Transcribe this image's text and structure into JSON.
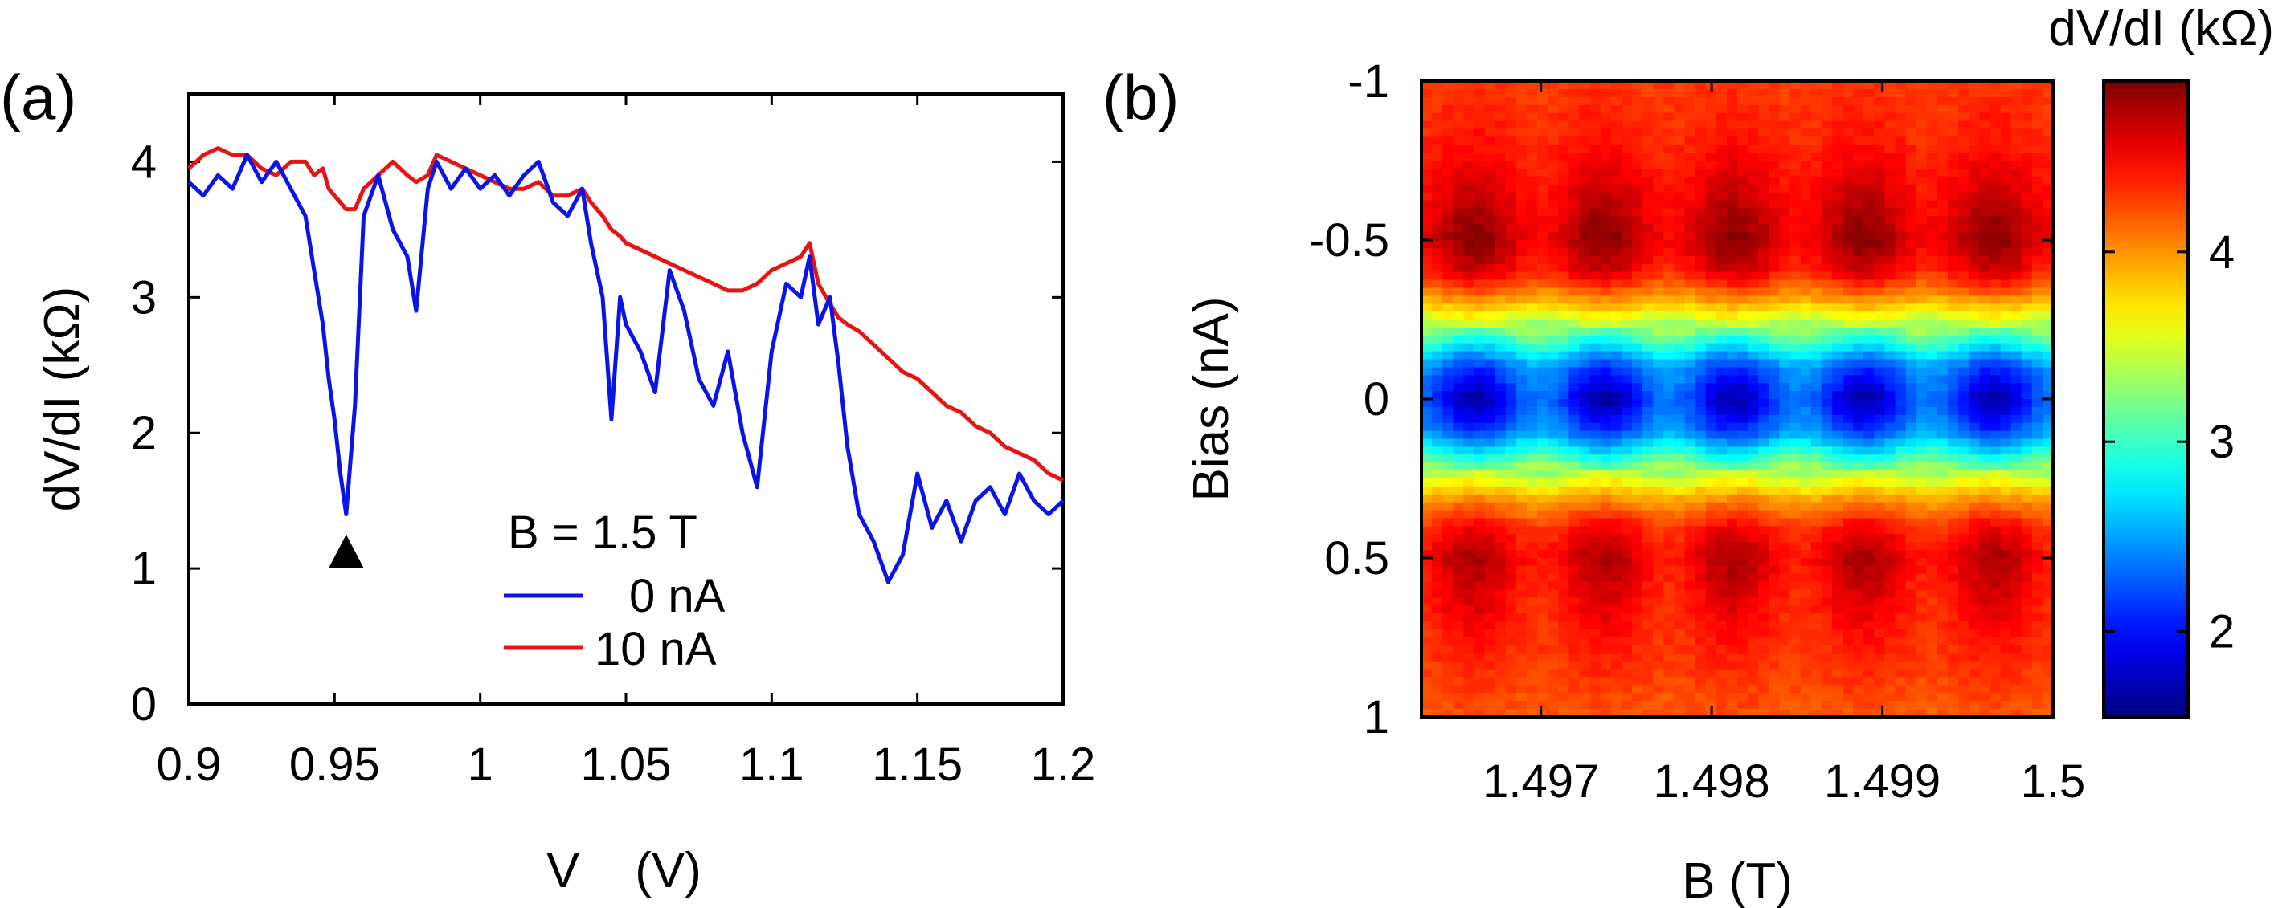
{
  "chart_data": [
    {
      "panel_label": "(a)",
      "type": "line",
      "xlabel": "V    (V)",
      "ylabel": "dV/dI (kΩ)",
      "xlim": [
        0.9,
        1.2
      ],
      "ylim": [
        0,
        4.5
      ],
      "xticks": [
        "0.9",
        "0.95",
        "1",
        "1.05",
        "1.1",
        "1.15",
        "1.2"
      ],
      "xtick_values": [
        0.9,
        0.95,
        1.0,
        1.05,
        1.1,
        1.15,
        1.2
      ],
      "yticks": [
        "0",
        "1",
        "2",
        "3",
        "4"
      ],
      "ytick_values": [
        0,
        1,
        2,
        3,
        4
      ],
      "legend_title": "B = 1.5 T",
      "legend_position": "bottom-center",
      "marker": {
        "symbol": "triangle-up",
        "x": 0.954,
        "y": 1.12
      },
      "x": [
        0.9,
        0.905,
        0.91,
        0.915,
        0.92,
        0.925,
        0.93,
        0.935,
        0.94,
        0.943,
        0.946,
        0.948,
        0.95,
        0.952,
        0.954,
        0.957,
        0.96,
        0.965,
        0.97,
        0.975,
        0.978,
        0.982,
        0.985,
        0.99,
        0.995,
        1.0,
        1.005,
        1.01,
        1.015,
        1.02,
        1.025,
        1.03,
        1.035,
        1.038,
        1.042,
        1.045,
        1.048,
        1.05,
        1.055,
        1.06,
        1.065,
        1.07,
        1.075,
        1.08,
        1.085,
        1.09,
        1.095,
        1.1,
        1.105,
        1.11,
        1.113,
        1.116,
        1.12,
        1.123,
        1.126,
        1.13,
        1.135,
        1.14,
        1.145,
        1.15,
        1.155,
        1.16,
        1.165,
        1.17,
        1.175,
        1.18,
        1.185,
        1.19,
        1.195,
        1.2
      ],
      "series": [
        {
          "name": "0 nA",
          "color": "#0a14e6",
          "values": [
            3.85,
            3.75,
            3.9,
            3.8,
            4.05,
            3.85,
            4.0,
            3.8,
            3.6,
            3.2,
            2.8,
            2.4,
            2.1,
            1.7,
            1.4,
            2.2,
            3.6,
            3.9,
            3.5,
            3.3,
            2.9,
            3.8,
            4.0,
            3.8,
            3.95,
            3.8,
            3.9,
            3.75,
            3.9,
            4.0,
            3.7,
            3.6,
            3.8,
            3.4,
            3.0,
            2.1,
            3.0,
            2.8,
            2.6,
            2.3,
            3.2,
            2.9,
            2.4,
            2.2,
            2.6,
            2.0,
            1.6,
            2.6,
            3.1,
            3.0,
            3.3,
            2.8,
            3.0,
            2.5,
            1.9,
            1.4,
            1.2,
            0.9,
            1.1,
            1.7,
            1.3,
            1.5,
            1.2,
            1.5,
            1.6,
            1.4,
            1.7,
            1.5,
            1.4,
            1.5
          ]
        },
        {
          "name": "10 nA",
          "color": "#e61414",
          "values": [
            3.95,
            4.05,
            4.1,
            4.05,
            4.05,
            3.95,
            3.9,
            4.0,
            4.0,
            3.9,
            3.95,
            3.8,
            3.75,
            3.7,
            3.65,
            3.65,
            3.8,
            3.9,
            4.0,
            3.9,
            3.85,
            3.9,
            4.05,
            4.0,
            3.95,
            3.9,
            3.85,
            3.8,
            3.8,
            3.85,
            3.75,
            3.75,
            3.8,
            3.7,
            3.6,
            3.5,
            3.45,
            3.4,
            3.35,
            3.3,
            3.25,
            3.2,
            3.15,
            3.1,
            3.05,
            3.05,
            3.1,
            3.2,
            3.25,
            3.3,
            3.4,
            3.1,
            2.95,
            2.85,
            2.8,
            2.75,
            2.65,
            2.55,
            2.45,
            2.4,
            2.3,
            2.2,
            2.15,
            2.05,
            2.0,
            1.9,
            1.85,
            1.8,
            1.7,
            1.65
          ]
        }
      ]
    },
    {
      "panel_label": "(b)",
      "type": "heatmap",
      "xlabel": "B (T)",
      "ylabel": "Bias (nA)",
      "xlim": [
        1.4963,
        1.5
      ],
      "ylim": [
        -1,
        1
      ],
      "y_reversed": true,
      "xticks": [
        "1.497",
        "1.498",
        "1.499",
        "1.5"
      ],
      "xtick_values": [
        1.497,
        1.498,
        1.499,
        1.5
      ],
      "yticks": [
        "-1",
        "-0.5",
        "0",
        "0.5",
        "1"
      ],
      "ytick_values": [
        -1,
        -0.5,
        0,
        0.5,
        1
      ],
      "colorbar": {
        "label": "dV/dI (kΩ)",
        "range": [
          1.55,
          4.9
        ],
        "ticks": [
          "2",
          "3",
          "4"
        ],
        "tick_values": [
          2,
          3,
          4
        ],
        "colormap": "jet"
      },
      "pattern": {
        "oscillation_period_T": 0.00076,
        "peak_centers_T": [
          1.49661,
          1.49736,
          1.49812,
          1.49889,
          1.49966
        ],
        "rows_bias_nA": [
          -1.0,
          -0.8,
          -0.6,
          -0.5,
          -0.4,
          -0.3,
          -0.2,
          -0.1,
          0.0,
          0.1,
          0.2,
          0.3,
          0.4,
          0.5,
          0.6,
          0.8,
          1.0
        ],
        "rows_base_kOhm": [
          4.3,
          4.4,
          4.6,
          4.7,
          4.5,
          3.9,
          3.1,
          2.3,
          2.0,
          2.3,
          3.1,
          3.9,
          4.4,
          4.6,
          4.5,
          4.35,
          4.2
        ],
        "rows_modulation_kOhm": [
          0.02,
          0.05,
          0.15,
          0.2,
          0.15,
          0.05,
          0.15,
          0.2,
          0.35,
          0.2,
          0.15,
          0.05,
          0.12,
          0.18,
          0.15,
          0.05,
          0.02
        ]
      }
    }
  ]
}
